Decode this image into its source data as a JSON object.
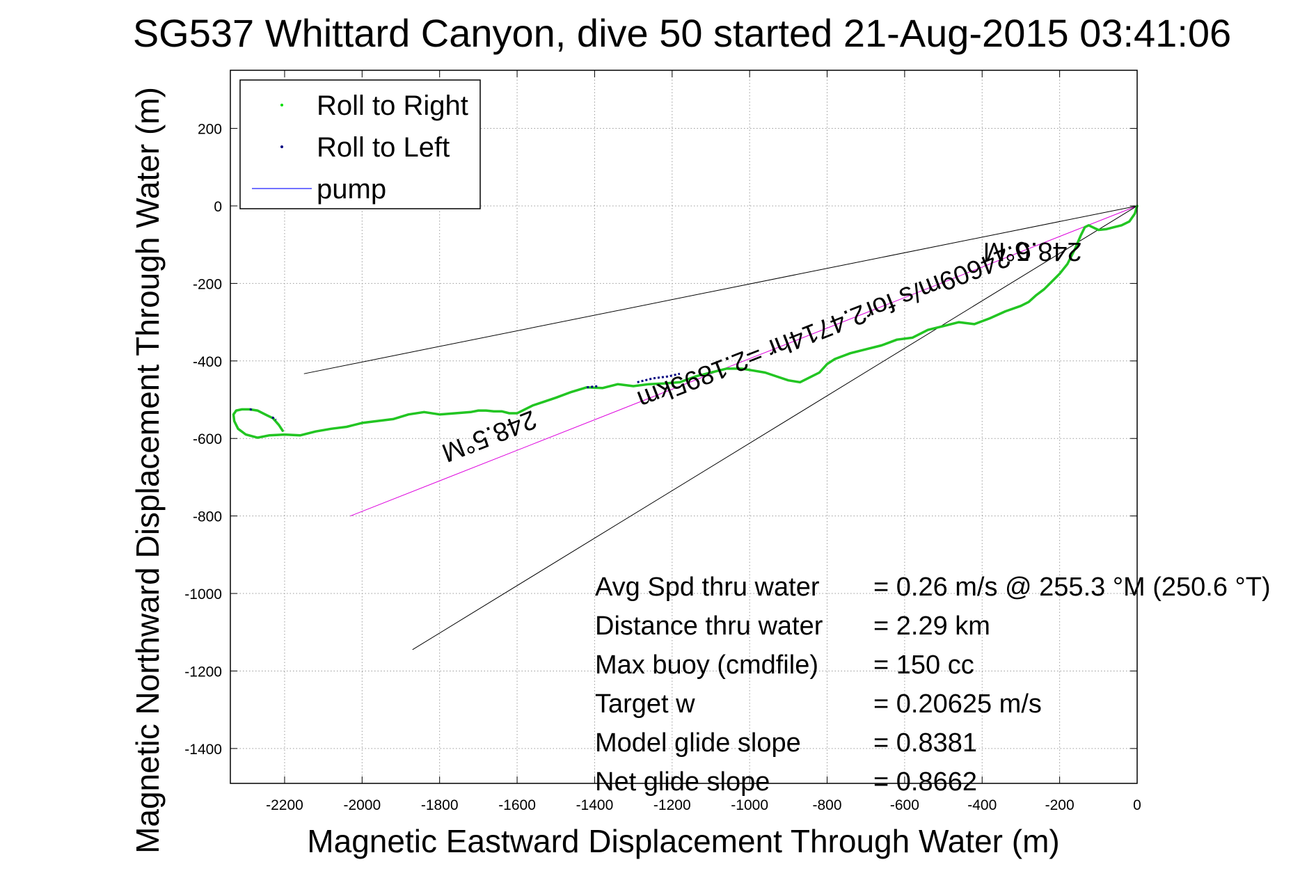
{
  "chart_data": {
    "type": "line",
    "title": "SG537 Whittard Canyon, dive 50 started 21-Aug-2015 03:41:06",
    "xlabel": "Magnetic Eastward Displacement Through Water (m)",
    "ylabel": "Magnetic Northward Displacement Through Water (m)",
    "xlim": [
      -2340,
      0
    ],
    "ylim": [
      -1490,
      350
    ],
    "xticks": [
      -2200,
      -2000,
      -1800,
      -1600,
      -1400,
      -1200,
      -1000,
      -800,
      -600,
      -400,
      -200,
      0
    ],
    "yticks": [
      200,
      0,
      -200,
      -400,
      -600,
      -800,
      -1000,
      -1200,
      -1400
    ],
    "grid": true,
    "legend": {
      "position": "top-left",
      "entries": [
        {
          "label": "Roll to Right",
          "color": "#00dd00",
          "marker": "dot"
        },
        {
          "label": "Roll to Left",
          "color": "#000080",
          "marker": "dot"
        },
        {
          "label": "pump",
          "color": "#4444ff",
          "marker": "line"
        }
      ]
    },
    "series": [
      {
        "name": "track",
        "color": "#22c522",
        "x": [
          0,
          -6,
          -20,
          -40,
          -60,
          -80,
          -100,
          -115,
          -125,
          -135,
          -145,
          -160,
          -180,
          -200,
          -220,
          -240,
          -260,
          -280,
          -300,
          -340,
          -380,
          -420,
          -460,
          -500,
          -540,
          -580,
          -620,
          -660,
          -700,
          -740,
          -780,
          -800,
          -820,
          -840,
          -870,
          -900,
          -930,
          -960,
          -990,
          -1020,
          -1060,
          -1100,
          -1140,
          -1180,
          -1220,
          -1260,
          -1300,
          -1340,
          -1380,
          -1420,
          -1460,
          -1500,
          -1530,
          -1560,
          -1580,
          -1600,
          -1620,
          -1640,
          -1660,
          -1680,
          -1700,
          -1720,
          -1760,
          -1800,
          -1840,
          -1880,
          -1920,
          -1960,
          -2000,
          -2040,
          -2080,
          -2120,
          -2160,
          -2200,
          -2240,
          -2270,
          -2300,
          -2320,
          -2330,
          -2332,
          -2325,
          -2310,
          -2290,
          -2270,
          -2250,
          -2230,
          -2215,
          -2205
        ],
        "y": [
          0,
          -20,
          -40,
          -50,
          -55,
          -60,
          -62,
          -55,
          -50,
          -55,
          -75,
          -110,
          -150,
          -175,
          -195,
          -215,
          -230,
          -248,
          -258,
          -272,
          -290,
          -305,
          -300,
          -310,
          -320,
          -340,
          -345,
          -360,
          -370,
          -380,
          -395,
          -408,
          -430,
          -440,
          -455,
          -450,
          -440,
          -430,
          -425,
          -420,
          -420,
          -430,
          -440,
          -455,
          -458,
          -460,
          -465,
          -460,
          -470,
          -468,
          -480,
          -495,
          -505,
          -515,
          -525,
          -535,
          -535,
          -530,
          -530,
          -528,
          -528,
          -532,
          -535,
          -538,
          -532,
          -538,
          -550,
          -555,
          -560,
          -570,
          -575,
          -582,
          -592,
          -590,
          -592,
          -598,
          -590,
          -575,
          -555,
          -538,
          -528,
          -525,
          -525,
          -528,
          -538,
          -548,
          -565,
          -580
        ]
      },
      {
        "name": "Roll to Left",
        "color": "#000080",
        "segments": [
          {
            "x": [
              -1290,
              -1250,
              -1210,
              -1180
            ],
            "y": [
              -455,
              -445,
              -440,
              -433
            ]
          },
          {
            "x": [
              -1420,
              -1390
            ],
            "y": [
              -468,
              -465
            ]
          },
          {
            "x": [
              -2290,
              -2280
            ],
            "y": [
              -525,
              -526
            ]
          },
          {
            "x": [
              -2232,
              -2222
            ],
            "y": [
              -545,
              -552
            ]
          }
        ]
      },
      {
        "name": "pump",
        "color": "#4444ff",
        "x": [],
        "y": []
      },
      {
        "name": "average-heading",
        "color": "#dd00dd",
        "x": [
          0,
          -2030
        ],
        "y": [
          0,
          -800
        ]
      },
      {
        "name": "bound-upper",
        "color": "#000000",
        "x": [
          0,
          -2150
        ],
        "y": [
          0,
          -433
        ]
      },
      {
        "name": "bound-lower",
        "color": "#000000",
        "x": [
          0,
          -1870
        ],
        "y": [
          0,
          -1145
        ]
      }
    ],
    "annotations": [
      {
        "text": "248.5°M",
        "x": -270,
        "y": -95,
        "angle_deg": 180
      },
      {
        "text": "0.24609m/s for2.4714hr =2.1895km",
        "x": -790,
        "y": -285,
        "angle_deg": 158.6
      },
      {
        "text": "248.5°M",
        "x": -1680,
        "y": -573,
        "angle_deg": 158.6
      }
    ],
    "info": [
      {
        "label": "Avg Spd thru water",
        "value": "=  0.26 m/s @ 255.3 °M (250.6 °T)"
      },
      {
        "label": "Distance thru water",
        "value": "=  2.29 km"
      },
      {
        "label": "Max buoy (cmdfile)",
        "value": "= 150 cc"
      },
      {
        "label": "Target w",
        "value": "= 0.20625 m/s"
      },
      {
        "label": "Model glide slope",
        "value": "= 0.8381"
      },
      {
        "label": "Net glide slope",
        "value": "= 0.8662"
      }
    ]
  }
}
